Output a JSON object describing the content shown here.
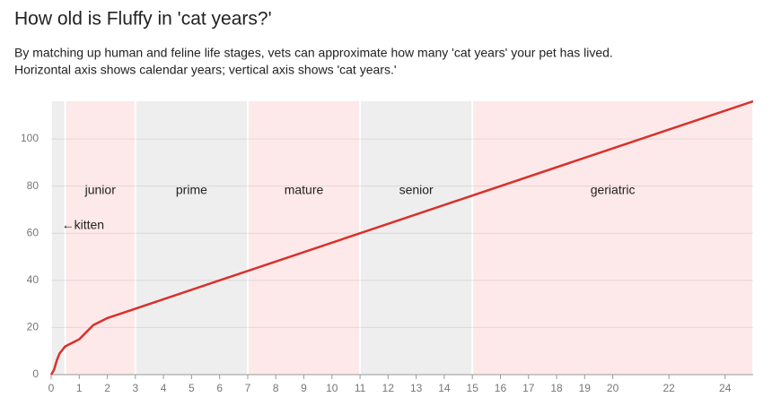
{
  "chart_data": {
    "type": "line",
    "title": "How old is Fluffy in 'cat years?'",
    "subtitle": [
      "By matching up human and feline life stages, vets can approximate how many 'cat years' your pet has lived.",
      "Horizontal axis shows calendar years; vertical axis shows 'cat years.'"
    ],
    "x": [
      0,
      0.1,
      0.2,
      0.3,
      0.5,
      1,
      1.5,
      2,
      3,
      25
    ],
    "series": [
      {
        "color": "#d9302c",
        "values": [
          0,
          2,
          6,
          9,
          12,
          15,
          21,
          24,
          28,
          116
        ]
      }
    ],
    "bands": [
      {
        "label": "←kitten",
        "start": 0,
        "end": 0.5,
        "color": "#eeeeee"
      },
      {
        "label": "junior",
        "start": 0.5,
        "end": 3,
        "color": "#fde9e9"
      },
      {
        "label": "prime",
        "start": 3,
        "end": 7,
        "color": "#eeeeee"
      },
      {
        "label": "mature",
        "start": 7,
        "end": 11,
        "color": "#fde9e9"
      },
      {
        "label": "senior",
        "start": 11,
        "end": 15,
        "color": "#eeeeee"
      },
      {
        "label": "geriatric",
        "start": 15,
        "end": 25,
        "color": "#fde9e9"
      }
    ],
    "xlim": [
      0,
      25
    ],
    "ylim": [
      0,
      116
    ],
    "xticks": [
      0,
      1,
      2,
      3,
      4,
      5,
      6,
      7,
      8,
      9,
      10,
      11,
      12,
      13,
      14,
      15,
      16,
      17,
      18,
      19,
      20,
      22,
      24
    ],
    "yticks": [
      0,
      20,
      40,
      60,
      80,
      100
    ],
    "grid": true
  }
}
